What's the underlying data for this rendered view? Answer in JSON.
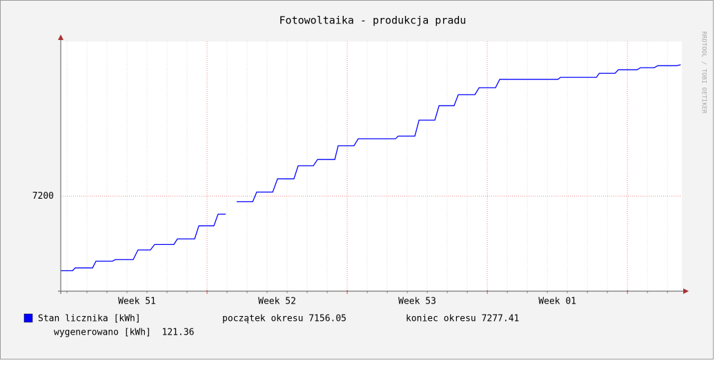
{
  "chart_data": {
    "type": "line",
    "title": "Fotowoltaika - produkcja pradu",
    "watermark": "RRDTOOL / TOBI OETIKER",
    "x": [
      -0.31,
      0.28,
      0.41,
      1.28,
      1.45,
      2.28,
      2.41,
      3.31,
      3.55,
      4.17,
      4.38,
      5.34,
      5.52,
      6.38,
      6.59,
      7.34,
      7.55,
      7.93,
      8.21,
      8.48,
      9.28,
      9.48,
      10.28,
      10.52,
      11.34,
      11.55,
      12.31,
      12.52,
      13.38,
      13.55,
      14.34,
      14.55,
      16.41,
      16.55,
      17.38,
      17.59,
      18.38,
      18.59,
      19.34,
      19.55,
      20.38,
      20.59,
      21.41,
      21.62,
      24.52,
      24.66,
      26.45,
      26.59,
      27.38,
      27.55,
      28.48,
      28.66,
      29.34,
      29.52,
      30.45,
      30.66
    ],
    "series": [
      {
        "name": "Stan licznika [kWh]",
        "color": "#0000ff",
        "values": [
          7156.05,
          7156.05,
          7157.7,
          7157.7,
          7161.7,
          7161.7,
          7162.6,
          7162.6,
          7168.3,
          7168.3,
          7171.5,
          7171.5,
          7174.8,
          7174.8,
          7182.5,
          7182.5,
          7189.4,
          7189.4,
          null,
          7196.7,
          7196.7,
          7202.4,
          7202.4,
          7210.2,
          7210.2,
          7217.9,
          7217.9,
          7221.6,
          7221.6,
          7229.7,
          7229.7,
          7233.8,
          7233.8,
          7235.4,
          7235.4,
          7244.8,
          7244.8,
          7253.3,
          7253.3,
          7259.8,
          7259.8,
          7263.9,
          7263.9,
          7268.8,
          7268.8,
          7270.0,
          7270.0,
          7272.4,
          7272.4,
          7274.5,
          7274.5,
          7275.7,
          7275.7,
          7276.9,
          7276.9,
          7277.41
        ]
      }
    ],
    "xlim": [
      -0.31,
      30.72
    ],
    "xticks": [
      {
        "value": 3.5,
        "label": "Week 51"
      },
      {
        "value": 10.5,
        "label": "Week 52"
      },
      {
        "value": 17.5,
        "label": "Week 53"
      },
      {
        "value": 24.5,
        "label": "Week 01"
      }
    ],
    "xgrid_major": [
      7,
      14,
      21,
      28
    ],
    "xgrid_minor": [
      0,
      1,
      2,
      3,
      4,
      5,
      6,
      8,
      9,
      10,
      11,
      12,
      13,
      15,
      16,
      17,
      18,
      19,
      20,
      22,
      23,
      24,
      25,
      26,
      27,
      29,
      30
    ],
    "ylim": [
      7144,
      7291.2
    ],
    "yticks": [
      7200
    ],
    "grid": true,
    "stats": [
      "początek okresu 7156.05",
      "koniec okresu 7277.41"
    ],
    "total": "wygenerowano [kWh]  121.36"
  }
}
